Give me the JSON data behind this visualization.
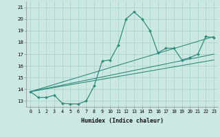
{
  "x": [
    0,
    1,
    2,
    3,
    4,
    5,
    6,
    7,
    8,
    9,
    10,
    11,
    12,
    13,
    14,
    15,
    16,
    17,
    18,
    19,
    20,
    21,
    22,
    23
  ],
  "y_main": [
    13.8,
    13.3,
    13.3,
    13.5,
    12.8,
    12.75,
    12.75,
    13.0,
    14.3,
    16.4,
    16.5,
    17.75,
    20.0,
    20.6,
    20.0,
    19.0,
    17.1,
    17.5,
    17.5,
    16.5,
    16.7,
    17.0,
    18.5,
    18.4
  ],
  "straight_lines": [
    {
      "x0": 0,
      "y0": 13.8,
      "x1": 23,
      "y1": 18.5
    },
    {
      "x0": 0,
      "y0": 13.8,
      "x1": 23,
      "y1": 17.0
    },
    {
      "x0": 0,
      "y0": 13.8,
      "x1": 23,
      "y1": 16.5
    }
  ],
  "line_color": "#2d8b7b",
  "bg_color": "#cce8e2",
  "grid_color": "#aad4cc",
  "xlabel": "Humidex (Indice chaleur)",
  "xlim": [
    -0.5,
    23.5
  ],
  "ylim": [
    12.5,
    21.5
  ],
  "yticks": [
    13,
    14,
    15,
    16,
    17,
    18,
    19,
    20,
    21
  ],
  "xtick_labels": [
    "0",
    "1",
    "2",
    "3",
    "4",
    "5",
    "6",
    "7",
    "8",
    "9",
    "10",
    "11",
    "12",
    "13",
    "14",
    "15",
    "16",
    "17",
    "18",
    "19",
    "20",
    "21",
    "22",
    "23"
  ]
}
